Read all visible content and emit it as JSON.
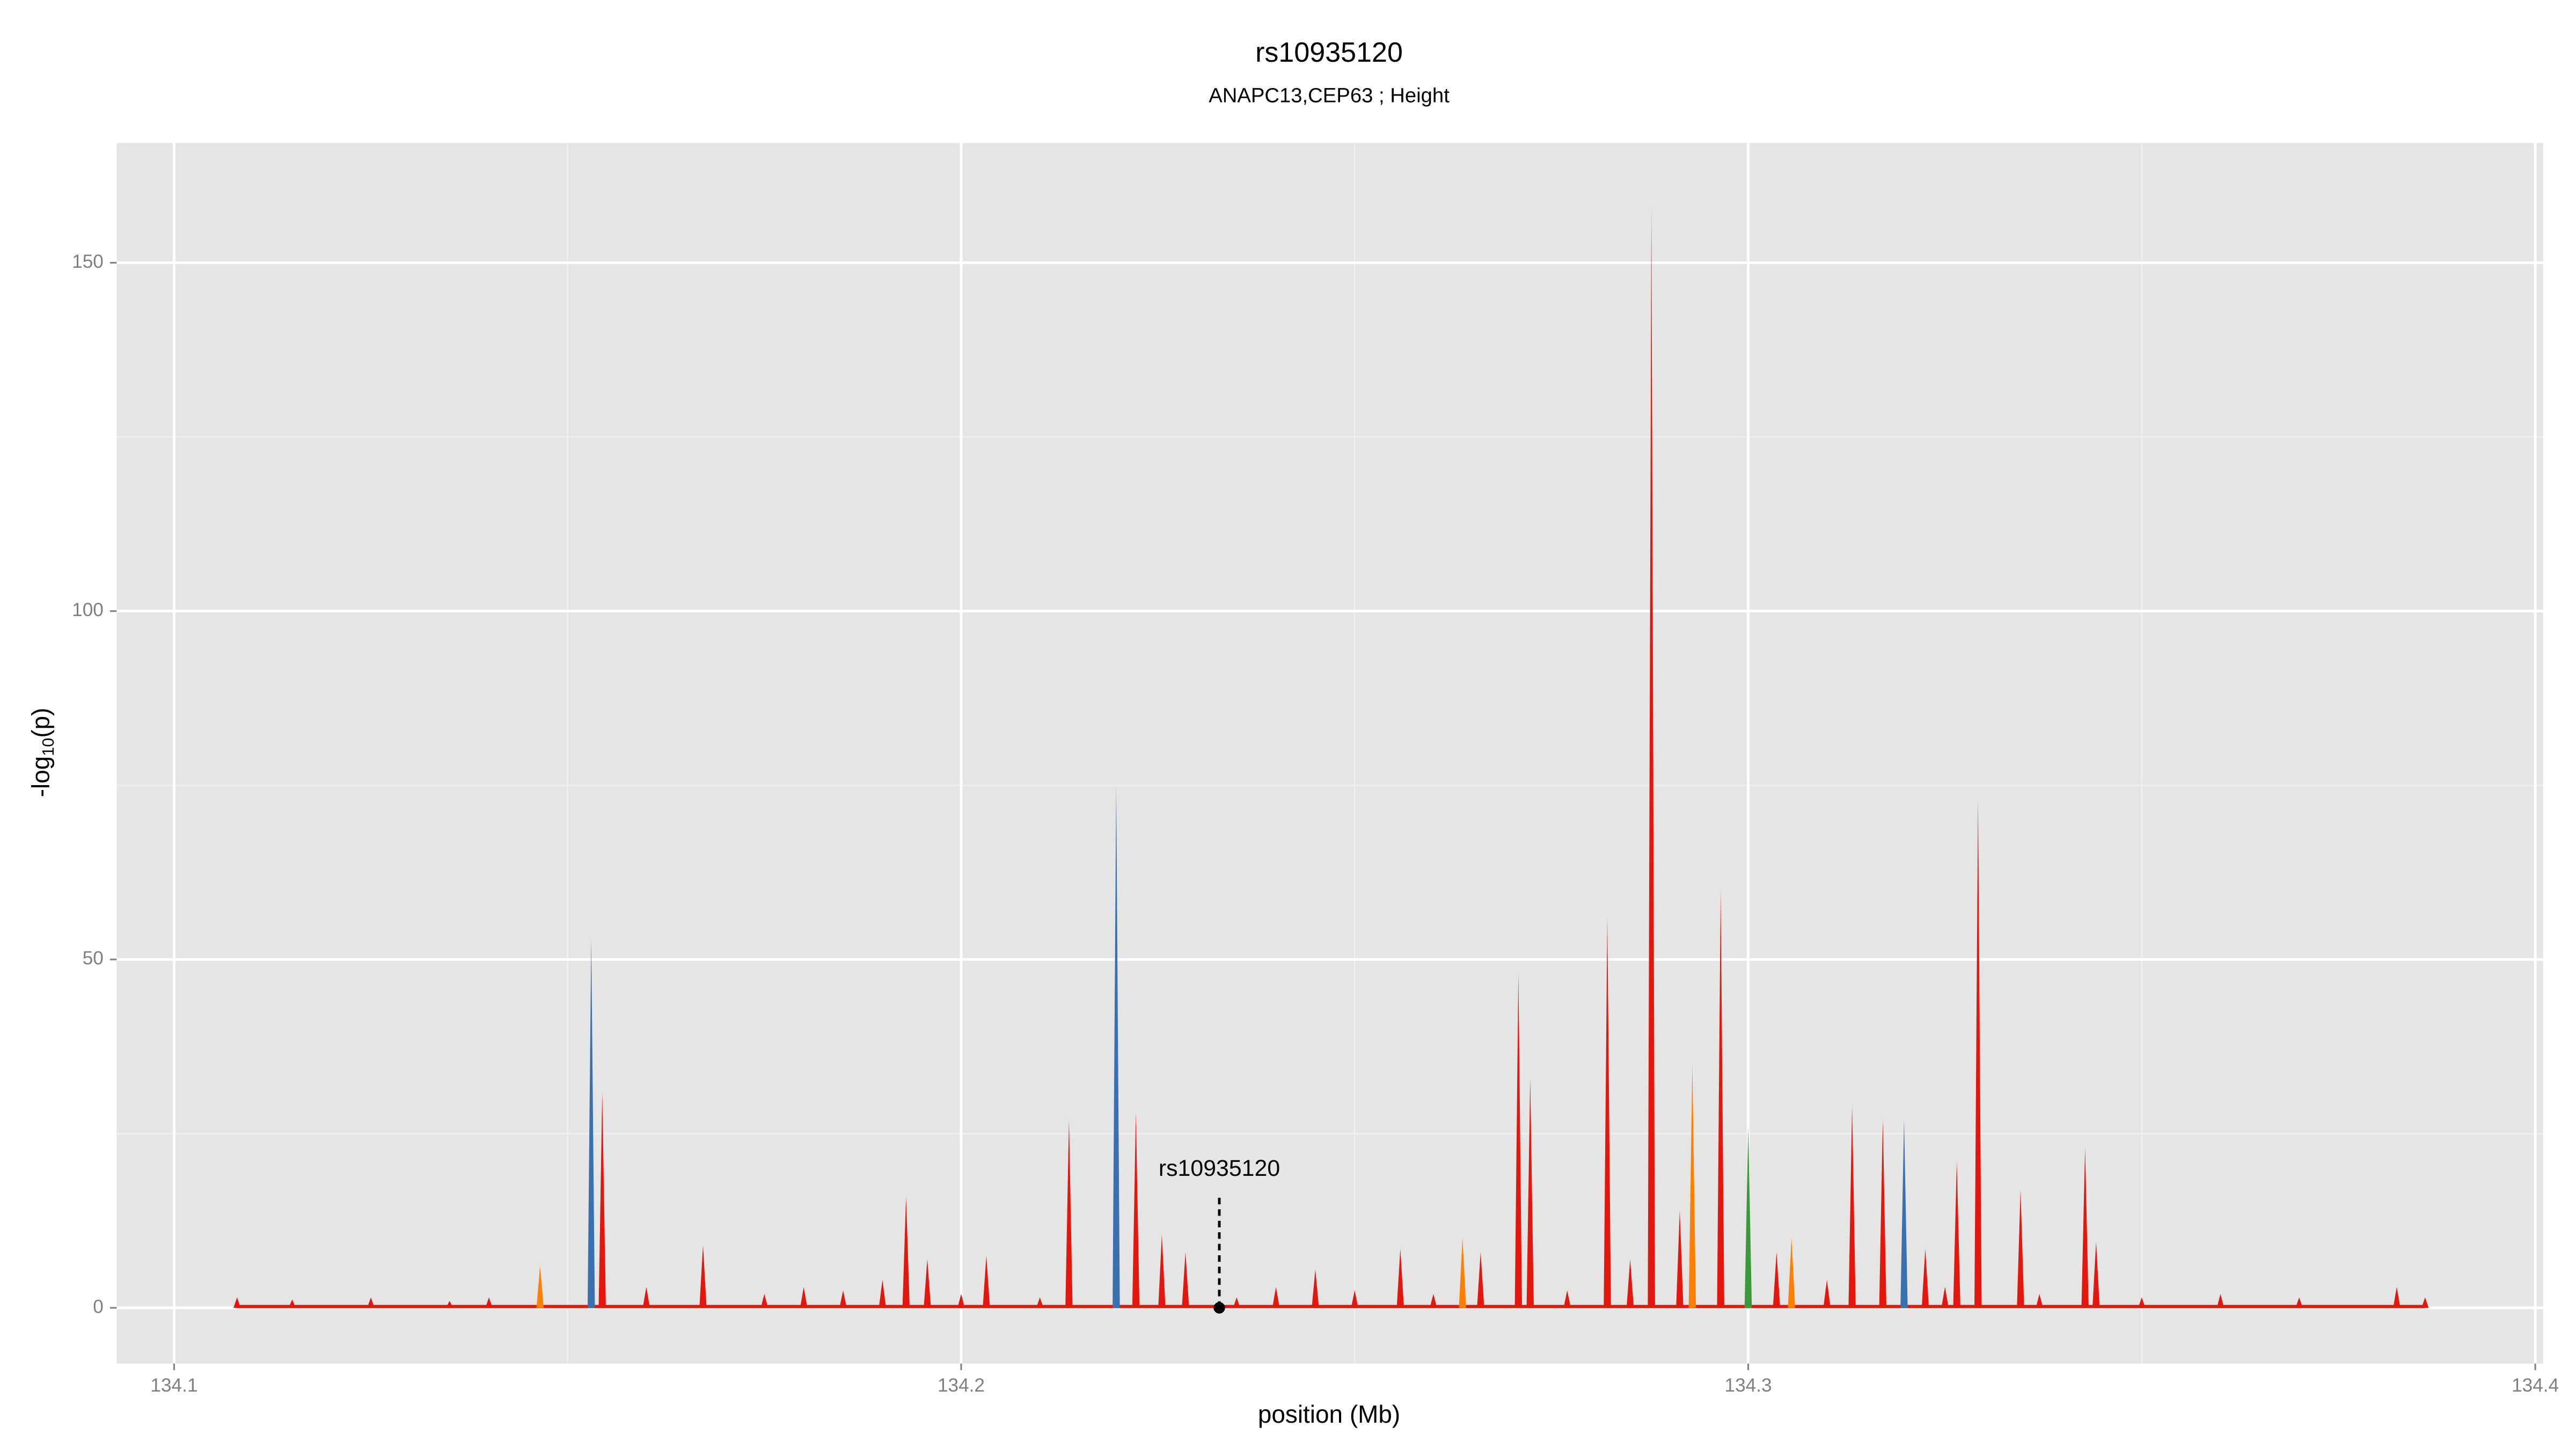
{
  "chart_data": {
    "type": "spike",
    "title": "rs10935120",
    "subtitle": "ANAPC13,CEP63 ; Height",
    "x_label": "position (Mb)",
    "y_label": [
      "-log",
      "10",
      "(p)"
    ],
    "xlim": [
      134.0927,
      134.401
    ],
    "ylim": [
      -8,
      167.2
    ],
    "xticks": [
      134.1,
      134.2,
      134.3,
      134.4
    ],
    "yticks": [
      0,
      50,
      100,
      150
    ],
    "x_minor_grid": [
      134.15,
      134.25,
      134.35
    ],
    "y_minor_grid": [
      25,
      75,
      125
    ],
    "grid": true,
    "background": "#e5e5e5",
    "series": [
      {
        "color": "#e3170d",
        "x": [
          134.108,
          134.115,
          134.125,
          134.135,
          134.14,
          134.1544,
          134.16,
          134.1672,
          134.175,
          134.18,
          134.185,
          134.19,
          134.193,
          134.1957,
          134.2,
          134.2032,
          134.21,
          134.2137,
          134.2222,
          134.2255,
          134.2285,
          134.235,
          134.24,
          134.245,
          134.25,
          134.2558,
          134.26,
          134.266,
          134.2708,
          134.2723,
          134.277,
          134.2821,
          134.285,
          134.2877,
          134.2913,
          134.2965,
          134.3036,
          134.31,
          134.3132,
          134.3171,
          134.3225,
          134.325,
          134.3265,
          134.3292,
          134.3346,
          134.337,
          134.3428,
          134.3442,
          134.35,
          134.36,
          134.37,
          134.3824,
          134.386
        ],
        "values": [
          1.5,
          1.2,
          1.5,
          1,
          1.5,
          31,
          3,
          9,
          2,
          3,
          2.5,
          4,
          16,
          7,
          2,
          7.5,
          1.5,
          27,
          28,
          10.5,
          8,
          1.5,
          3,
          5.5,
          2.5,
          8.5,
          2,
          8,
          48,
          33,
          2.5,
          56,
          7,
          158,
          14,
          60,
          8,
          4,
          29,
          27,
          8.5,
          3,
          21,
          73,
          17,
          2,
          23,
          9.5,
          1.5,
          2,
          1.5,
          3,
          1.5
        ]
      },
      {
        "color": "#3a6fb0",
        "x": [
          134.153,
          134.2197,
          134.3198
        ],
        "values": [
          53,
          75,
          27
        ]
      },
      {
        "color": "#ff7f00",
        "x": [
          134.1465,
          134.2637,
          134.2929,
          134.3055
        ],
        "values": [
          6,
          10,
          35,
          10
        ]
      },
      {
        "color": "#3a9a3a",
        "x": [
          134.3
        ],
        "values": [
          26
        ]
      }
    ],
    "annotation": {
      "text": "rs10935120",
      "x": 134.2328,
      "y": 0
    }
  }
}
